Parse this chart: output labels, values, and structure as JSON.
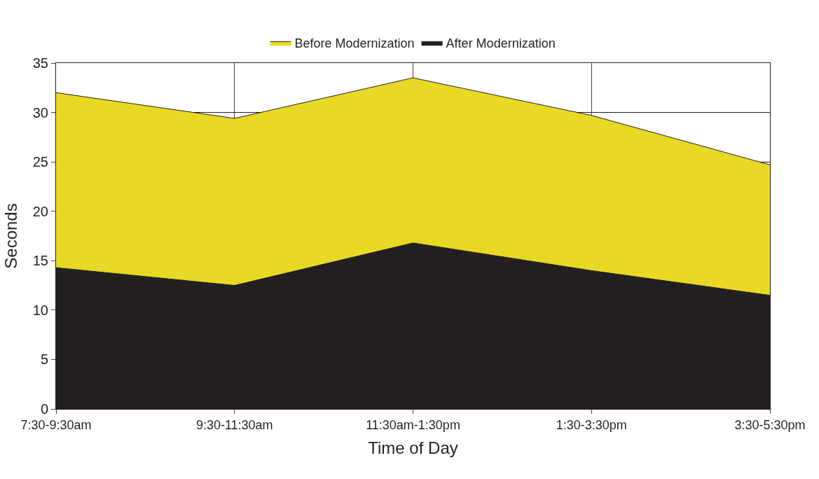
{
  "chart_data": {
    "type": "area",
    "xlabel": "Time of Day",
    "ylabel": "Seconds",
    "categories": [
      "7:30-9:30am",
      "9:30-11:30am",
      "11:30am-1:30pm",
      "1:30-3:30pm",
      "3:30-5:30pm"
    ],
    "series": [
      {
        "name": "Before Modernization",
        "color": "#e8d924",
        "values": [
          32.0,
          29.4,
          33.5,
          29.7,
          24.7
        ]
      },
      {
        "name": "After Modernization",
        "color": "#231f20",
        "values": [
          14.3,
          12.5,
          16.8,
          14.0,
          11.5
        ]
      }
    ],
    "ylim": [
      0,
      35
    ],
    "yticks": [
      0,
      5,
      10,
      15,
      20,
      25,
      30,
      35
    ],
    "grid": true,
    "legend": "top"
  }
}
